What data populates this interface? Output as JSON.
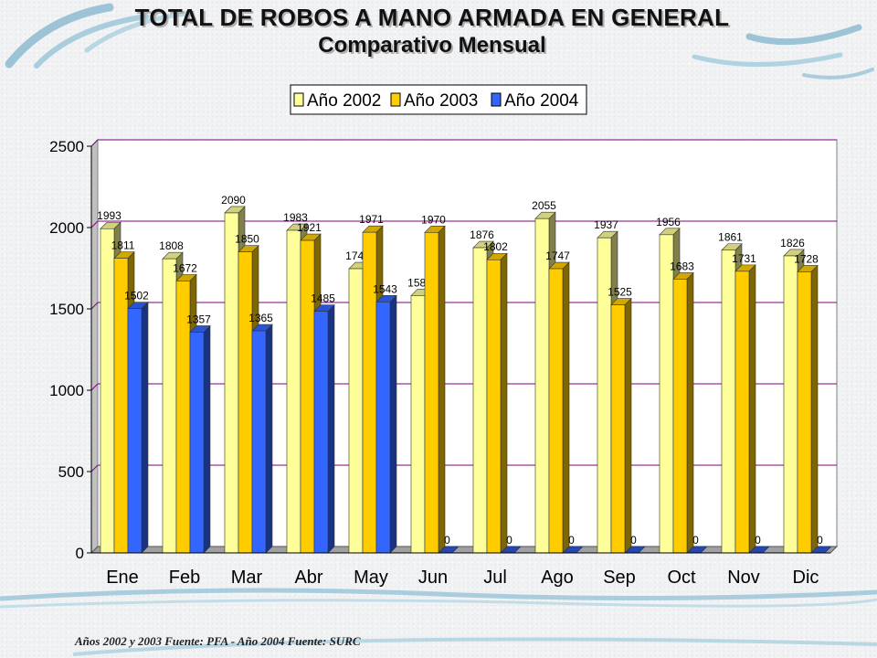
{
  "header": {
    "title": "TOTAL DE ROBOS A MANO ARMADA EN GENERAL",
    "subtitle": "Comparativo Mensual"
  },
  "footer": {
    "source": "Años 2002 y 2003 Fuente: PFA - Año 2004 Fuente: SURC"
  },
  "chart_data": {
    "type": "bar",
    "categories": [
      "Ene",
      "Feb",
      "Mar",
      "Abr",
      "May",
      "Jun",
      "Jul",
      "Ago",
      "Sep",
      "Oct",
      "Nov",
      "Dic"
    ],
    "series": [
      {
        "name": "Año 2002",
        "color": "#ffff99",
        "values": [
          1993,
          1808,
          2090,
          1983,
          1747,
          1582,
          1876,
          2055,
          1937,
          1956,
          1861,
          1826
        ]
      },
      {
        "name": "Año 2003",
        "color": "#ffcc00",
        "values": [
          1811,
          1672,
          1850,
          1921,
          1971,
          1970,
          1802,
          1747,
          1525,
          1683,
          1731,
          1728
        ]
      },
      {
        "name": "Año 2004",
        "color": "#3366ff",
        "values": [
          1502,
          1357,
          1365,
          1485,
          1543,
          0,
          0,
          0,
          0,
          0,
          0,
          0
        ]
      }
    ],
    "y_ticks": [
      0,
      500,
      1000,
      1500,
      2000,
      2500
    ],
    "ylim": [
      0,
      2500
    ],
    "grid": true,
    "legend_position": "top-center",
    "data_labels": true
  }
}
